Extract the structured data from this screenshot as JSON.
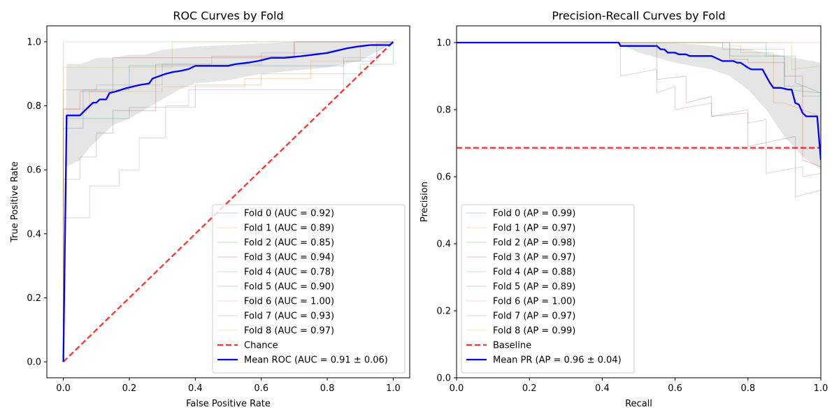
{
  "figure_title": "",
  "chart_data": [
    {
      "type": "line",
      "title": "ROC Curves by Fold",
      "xlabel": "False Positive Rate",
      "ylabel": "True Positive Rate",
      "xlim": [
        -0.05,
        1.05
      ],
      "ylim": [
        -0.05,
        1.05
      ],
      "grid": false,
      "legend_placement": "lower-right",
      "xticks": [
        0.0,
        0.2,
        0.4,
        0.6,
        0.8,
        1.0
      ],
      "yticks": [
        0.0,
        0.2,
        0.4,
        0.6,
        0.8,
        1.0
      ],
      "xtick_labels": [
        "0.0",
        "0.2",
        "0.4",
        "0.6",
        "0.8",
        "1.0"
      ],
      "ytick_labels": [
        "0.0",
        "0.2",
        "0.4",
        "0.6",
        "0.8",
        "1.0"
      ],
      "band": {
        "color": "#cccccc",
        "x": [
          0,
          0.01,
          0.05,
          0.08,
          0.1,
          0.15,
          0.2,
          0.25,
          0.3,
          0.35,
          0.4,
          0.5,
          0.6,
          0.7,
          0.8,
          0.9,
          1.0
        ],
        "upper": [
          0,
          0.93,
          0.93,
          0.94,
          0.95,
          0.95,
          0.96,
          0.96,
          0.975,
          0.98,
          0.985,
          0.99,
          0.995,
          1.0,
          1.0,
          1.0,
          1.0
        ],
        "lower": [
          0,
          0.61,
          0.63,
          0.67,
          0.69,
          0.74,
          0.76,
          0.79,
          0.82,
          0.85,
          0.87,
          0.88,
          0.9,
          0.91,
          0.92,
          0.94,
          1.0
        ]
      },
      "series": [
        {
          "name": "Fold 0 (AUC = 0.92)",
          "color": "#1f77b4",
          "width": 1,
          "opacity": 0.3,
          "x": [
            0,
            0,
            0.06,
            0.06,
            0.2,
            0.2,
            0.45,
            0.45,
            0.85,
            0.85,
            0.95,
            0.95,
            1.0
          ],
          "y": [
            0,
            0.73,
            0.73,
            0.85,
            0.85,
            0.925,
            0.925,
            0.925,
            0.925,
            0.94,
            0.94,
            0.97,
            1.0
          ]
        },
        {
          "name": "Fold 1 (AUC = 0.89)",
          "color": "#ff7f0e",
          "width": 1,
          "opacity": 0.3,
          "x": [
            0,
            0,
            0.08,
            0.08,
            0.3,
            0.3,
            0.55,
            0.55,
            0.75,
            0.75,
            0.9,
            0.9,
            1.0
          ],
          "y": [
            0,
            0.79,
            0.79,
            0.845,
            0.845,
            0.86,
            0.86,
            0.885,
            0.885,
            0.94,
            0.94,
            1.0,
            1.0
          ]
        },
        {
          "name": "Fold 2 (AUC = 0.85)",
          "color": "#2ca02c",
          "width": 1,
          "opacity": 0.3,
          "x": [
            0,
            0,
            0.06,
            0.06,
            0.2,
            0.2,
            0.4,
            0.4,
            0.6,
            0.6,
            0.9,
            0.9,
            1.0,
            1.0
          ],
          "y": [
            0,
            0.76,
            0.76,
            0.76,
            0.76,
            0.795,
            0.795,
            0.865,
            0.865,
            0.9,
            0.9,
            0.93,
            0.93,
            1.0
          ]
        },
        {
          "name": "Fold 3 (AUC = 0.94)",
          "color": "#d62728",
          "width": 1,
          "opacity": 0.3,
          "x": [
            0,
            0,
            0.05,
            0.05,
            0.15,
            0.15,
            0.35,
            0.35,
            0.7,
            0.7,
            1.0
          ],
          "y": [
            0,
            0.79,
            0.79,
            0.845,
            0.845,
            0.95,
            0.95,
            0.95,
            0.95,
            1.0,
            1.0
          ]
        },
        {
          "name": "Fold 4 (AUC = 0.78)",
          "color": "#9467bd",
          "width": 1,
          "opacity": 0.3,
          "x": [
            0,
            0,
            0.08,
            0.08,
            0.17,
            0.17,
            0.23,
            0.23,
            0.31,
            0.31,
            0.38,
            0.38,
            0.85,
            0.85,
            0.95,
            0.95,
            1.0
          ],
          "y": [
            0,
            0.45,
            0.45,
            0.55,
            0.55,
            0.6,
            0.6,
            0.7,
            0.7,
            0.8,
            0.8,
            0.85,
            0.85,
            0.95,
            0.95,
            1.0,
            1.0
          ]
        },
        {
          "name": "Fold 5 (AUC = 0.90)",
          "color": "#8c564b",
          "width": 1,
          "opacity": 0.3,
          "x": [
            0,
            0,
            0.05,
            0.05,
            0.1,
            0.1,
            0.15,
            0.15,
            0.28,
            0.28,
            0.45,
            0.45,
            0.7,
            0.7,
            1.0
          ],
          "y": [
            0,
            0.57,
            0.57,
            0.64,
            0.64,
            0.715,
            0.715,
            0.785,
            0.785,
            0.93,
            0.93,
            0.955,
            0.955,
            1.0,
            1.0
          ]
        },
        {
          "name": "Fold 6 (AUC = 1.00)",
          "color": "#e377c2",
          "width": 1,
          "opacity": 0.3,
          "x": [
            0,
            0,
            1.0
          ],
          "y": [
            0,
            1.0,
            1.0
          ]
        },
        {
          "name": "Fold 7 (AUC = 0.93)",
          "color": "#7f7f7f",
          "width": 1,
          "opacity": 0.3,
          "x": [
            0,
            0,
            0.1,
            0.1,
            0.3,
            0.3,
            0.6,
            0.6,
            0.8,
            0.8,
            1.0
          ],
          "y": [
            0,
            0.85,
            0.85,
            0.865,
            0.865,
            0.93,
            0.93,
            0.965,
            0.965,
            0.97,
            1.0
          ]
        },
        {
          "name": "Fold 8 (AUC = 0.97)",
          "color": "#bcbd22",
          "width": 1,
          "opacity": 0.3,
          "x": [
            0,
            0,
            0.1,
            0.1,
            0.33,
            0.33,
            1.0
          ],
          "y": [
            0,
            0.92,
            0.92,
            0.92,
            0.92,
            1.0,
            1.0
          ]
        },
        {
          "name": "Chance",
          "color": "#ff0000",
          "width": 2.3,
          "opacity": 0.8,
          "dash": "8,4",
          "x": [
            0,
            1
          ],
          "y": [
            0,
            1
          ]
        },
        {
          "name": "Mean ROC (AUC = 0.91 ± 0.06)",
          "color": "#0000ff",
          "width": 2.3,
          "opacity": 1,
          "x": [
            0,
            0.01,
            0.05,
            0.06,
            0.08,
            0.09,
            0.1,
            0.11,
            0.13,
            0.14,
            0.16,
            0.19,
            0.21,
            0.23,
            0.26,
            0.27,
            0.31,
            0.33,
            0.36,
            0.38,
            0.4,
            0.5,
            0.52,
            0.56,
            0.59,
            0.61,
            0.63,
            0.67,
            0.72,
            0.76,
            0.8,
            0.84,
            0.86,
            0.89,
            0.93,
            0.99,
            1.0
          ],
          "y": [
            0,
            0.77,
            0.77,
            0.78,
            0.8,
            0.81,
            0.81,
            0.82,
            0.82,
            0.84,
            0.845,
            0.855,
            0.86,
            0.865,
            0.87,
            0.885,
            0.9,
            0.905,
            0.91,
            0.915,
            0.925,
            0.925,
            0.93,
            0.935,
            0.94,
            0.945,
            0.95,
            0.95,
            0.955,
            0.96,
            0.965,
            0.975,
            0.98,
            0.985,
            0.99,
            0.99,
            1.0
          ]
        }
      ]
    },
    {
      "type": "line",
      "title": "Precision-Recall Curves by Fold",
      "xlabel": "Recall",
      "ylabel": "Precision",
      "xlim": [
        0.0,
        1.0
      ],
      "ylim": [
        0.0,
        1.05
      ],
      "grid": false,
      "legend_placement": "lower-left",
      "xticks": [
        0.0,
        0.2,
        0.4,
        0.6,
        0.8,
        1.0
      ],
      "yticks": [
        0.0,
        0.2,
        0.4,
        0.6,
        0.8,
        1.0
      ],
      "xtick_labels": [
        "0.0",
        "0.2",
        "0.4",
        "0.6",
        "0.8",
        "1.0"
      ],
      "ytick_labels": [
        "0.0",
        "0.2",
        "0.4",
        "0.6",
        "0.8",
        "1.0"
      ],
      "band": {
        "color": "#cccccc",
        "x": [
          0,
          0.44,
          0.5,
          0.6,
          0.65,
          0.7,
          0.75,
          0.8,
          0.85,
          0.9,
          0.95,
          1.0
        ],
        "upper": [
          1.0,
          1.0,
          1.0,
          0.998,
          0.995,
          0.99,
          0.985,
          0.98,
          0.97,
          0.96,
          0.95,
          0.94
        ],
        "lower": [
          1.0,
          1.0,
          0.97,
          0.94,
          0.93,
          0.92,
          0.9,
          0.86,
          0.8,
          0.72,
          0.66,
          0.62
        ]
      },
      "series": [
        {
          "name": "Fold 0 (AP = 0.99)",
          "color": "#1f77b4",
          "width": 1,
          "opacity": 0.3,
          "x": [
            0,
            0.85,
            0.85,
            0.93,
            0.93,
            1.0
          ],
          "y": [
            1.0,
            1.0,
            0.96,
            0.96,
            0.88,
            0.85
          ]
        },
        {
          "name": "Fold 1 (AP = 0.97)",
          "color": "#ff7f0e",
          "width": 1,
          "opacity": 0.3,
          "x": [
            0,
            0.73,
            0.73,
            0.78,
            0.78,
            0.87,
            0.87,
            0.9,
            0.9,
            1.0
          ],
          "y": [
            1.0,
            1.0,
            0.99,
            0.99,
            0.97,
            0.97,
            0.82,
            0.82,
            0.82,
            0.78
          ]
        },
        {
          "name": "Fold 2 (AP = 0.98)",
          "color": "#2ca02c",
          "width": 1,
          "opacity": 0.3,
          "x": [
            0,
            0.75,
            0.75,
            0.9,
            0.9,
            1.0
          ],
          "y": [
            1.0,
            1.0,
            0.96,
            0.96,
            0.86,
            0.85
          ]
        },
        {
          "name": "Fold 3 (AP = 0.97)",
          "color": "#d62728",
          "width": 1,
          "opacity": 0.3,
          "x": [
            0,
            0.75,
            0.75,
            0.8,
            0.8,
            0.9,
            0.9,
            0.95,
            0.95,
            1.0
          ],
          "y": [
            1.0,
            1.0,
            0.95,
            0.95,
            0.94,
            0.94,
            0.9,
            0.9,
            0.65,
            0.63
          ]
        },
        {
          "name": "Fold 4 (AP = 0.88)",
          "color": "#9467bd",
          "width": 1,
          "opacity": 0.3,
          "x": [
            0,
            0.45,
            0.45,
            0.55,
            0.55,
            0.6,
            0.6,
            0.7,
            0.7,
            0.8,
            0.8,
            0.85,
            0.85,
            0.95,
            0.95,
            1.0
          ],
          "y": [
            1.0,
            1.0,
            0.9,
            0.92,
            0.85,
            0.87,
            0.8,
            0.82,
            0.78,
            0.8,
            0.76,
            0.77,
            0.61,
            0.63,
            0.6,
            0.61
          ]
        },
        {
          "name": "Fold 5 (AP = 0.89)",
          "color": "#8c564b",
          "width": 1,
          "opacity": 0.3,
          "x": [
            0,
            0.55,
            0.55,
            0.63,
            0.63,
            0.7,
            0.7,
            0.8,
            0.8,
            0.93,
            0.93,
            1.0,
            1.0
          ],
          "y": [
            1.0,
            1.0,
            0.89,
            0.9,
            0.82,
            0.84,
            0.78,
            0.79,
            0.69,
            0.72,
            0.54,
            0.56,
            0.5
          ]
        },
        {
          "name": "Fold 6 (AP = 1.00)",
          "color": "#e377c2",
          "width": 1,
          "opacity": 0.3,
          "x": [
            0,
            1.0
          ],
          "y": [
            1.0,
            1.0
          ]
        },
        {
          "name": "Fold 7 (AP = 0.97)",
          "color": "#7f7f7f",
          "width": 1,
          "opacity": 0.3,
          "x": [
            0,
            0.73,
            0.73,
            0.9,
            0.9,
            0.95,
            0.95,
            1.0
          ],
          "y": [
            1.0,
            1.0,
            0.98,
            0.98,
            0.87,
            0.87,
            0.84,
            0.84
          ]
        },
        {
          "name": "Fold 8 (AP = 0.99)",
          "color": "#bcbd22",
          "width": 1,
          "opacity": 0.3,
          "x": [
            0,
            0.92,
            0.92,
            1.0
          ],
          "y": [
            1.0,
            1.0,
            0.92,
            0.93
          ]
        },
        {
          "name": "Baseline",
          "color": "#ff0000",
          "width": 2.3,
          "opacity": 0.8,
          "dash": "8,4",
          "x": [
            0,
            1.0
          ],
          "y": [
            0.686,
            0.686
          ]
        },
        {
          "name": "Mean PR (AP = 0.96 ± 0.04)",
          "color": "#0000ff",
          "width": 2.3,
          "opacity": 1,
          "x": [
            0,
            0.445,
            0.45,
            0.55,
            0.56,
            0.57,
            0.58,
            0.6,
            0.61,
            0.63,
            0.64,
            0.7,
            0.72,
            0.73,
            0.76,
            0.77,
            0.78,
            0.8,
            0.81,
            0.84,
            0.85,
            0.86,
            0.87,
            0.89,
            0.91,
            0.92,
            0.93,
            0.94,
            0.95,
            0.96,
            0.97,
            0.99,
            1.0
          ],
          "y": [
            1.0,
            1.0,
            0.99,
            0.99,
            0.98,
            0.98,
            0.97,
            0.97,
            0.965,
            0.965,
            0.96,
            0.96,
            0.95,
            0.945,
            0.945,
            0.94,
            0.94,
            0.925,
            0.92,
            0.92,
            0.9,
            0.88,
            0.865,
            0.865,
            0.86,
            0.86,
            0.82,
            0.815,
            0.79,
            0.78,
            0.78,
            0.78,
            0.65
          ]
        }
      ]
    }
  ]
}
